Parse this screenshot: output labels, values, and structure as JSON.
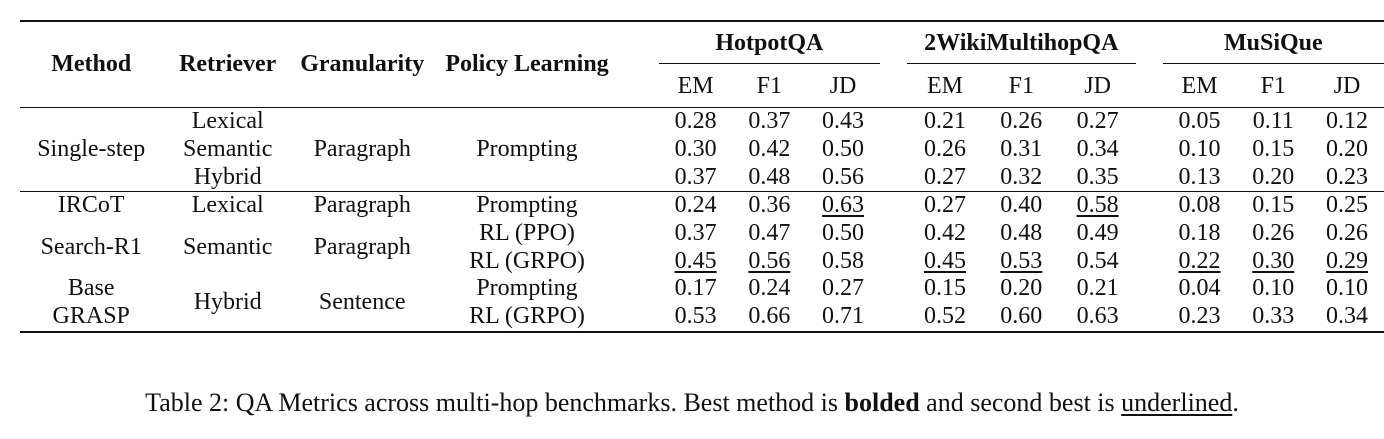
{
  "header": {
    "method": "Method",
    "retriever": "Retriever",
    "granularity": "Granularity",
    "policy": "Policy Learning",
    "groups": [
      "HotpotQA",
      "2WikiMultihopQA",
      "MuSiQue"
    ],
    "metrics": [
      "EM",
      "F1",
      "JD"
    ]
  },
  "section1": {
    "method": "Single-step",
    "retrievers": [
      "Lexical",
      "Semantic",
      "Hybrid"
    ],
    "granularity": "Paragraph",
    "policy": "Prompting",
    "rows": [
      [
        "0.28",
        "0.37",
        "0.43",
        "0.21",
        "0.26",
        "0.27",
        "0.05",
        "0.11",
        "0.12"
      ],
      [
        "0.30",
        "0.42",
        "0.50",
        "0.26",
        "0.31",
        "0.34",
        "0.10",
        "0.15",
        "0.20"
      ],
      [
        "0.37",
        "0.48",
        "0.56",
        "0.27",
        "0.32",
        "0.35",
        "0.13",
        "0.20",
        "0.23"
      ]
    ]
  },
  "section2": {
    "ircot": {
      "method": "IRCoT",
      "retriever": "Lexical",
      "granularity": "Paragraph",
      "policy": "Prompting",
      "values": [
        "0.24",
        "0.36",
        "0.63",
        "0.27",
        "0.40",
        "0.58",
        "0.08",
        "0.15",
        "0.25"
      ]
    },
    "searchr1": {
      "method": "Search-R1",
      "retriever": "Semantic",
      "granularity": "Paragraph",
      "policies": [
        "RL (PPO)",
        "RL (GRPO)"
      ],
      "rows": [
        [
          "0.37",
          "0.47",
          "0.50",
          "0.42",
          "0.48",
          "0.49",
          "0.18",
          "0.26",
          "0.26"
        ],
        [
          "0.45",
          "0.56",
          "0.58",
          "0.45",
          "0.53",
          "0.54",
          "0.22",
          "0.30",
          "0.29"
        ]
      ]
    },
    "grasp": {
      "methods": [
        "Base",
        "GRASP"
      ],
      "retriever": "Hybrid",
      "granularity": "Sentence",
      "policies": [
        "Prompting",
        "RL (GRPO)"
      ],
      "rows": [
        [
          "0.17",
          "0.24",
          "0.27",
          "0.15",
          "0.20",
          "0.21",
          "0.04",
          "0.10",
          "0.10"
        ],
        [
          "0.53",
          "0.66",
          "0.71",
          "0.52",
          "0.60",
          "0.63",
          "0.23",
          "0.33",
          "0.34"
        ]
      ]
    }
  },
  "caption": {
    "prefix": "Table 2: QA Metrics across multi-hop benchmarks. Best method is ",
    "bold": "bolded",
    "middle": " and second best is ",
    "underline": "underlined",
    "suffix": "."
  }
}
